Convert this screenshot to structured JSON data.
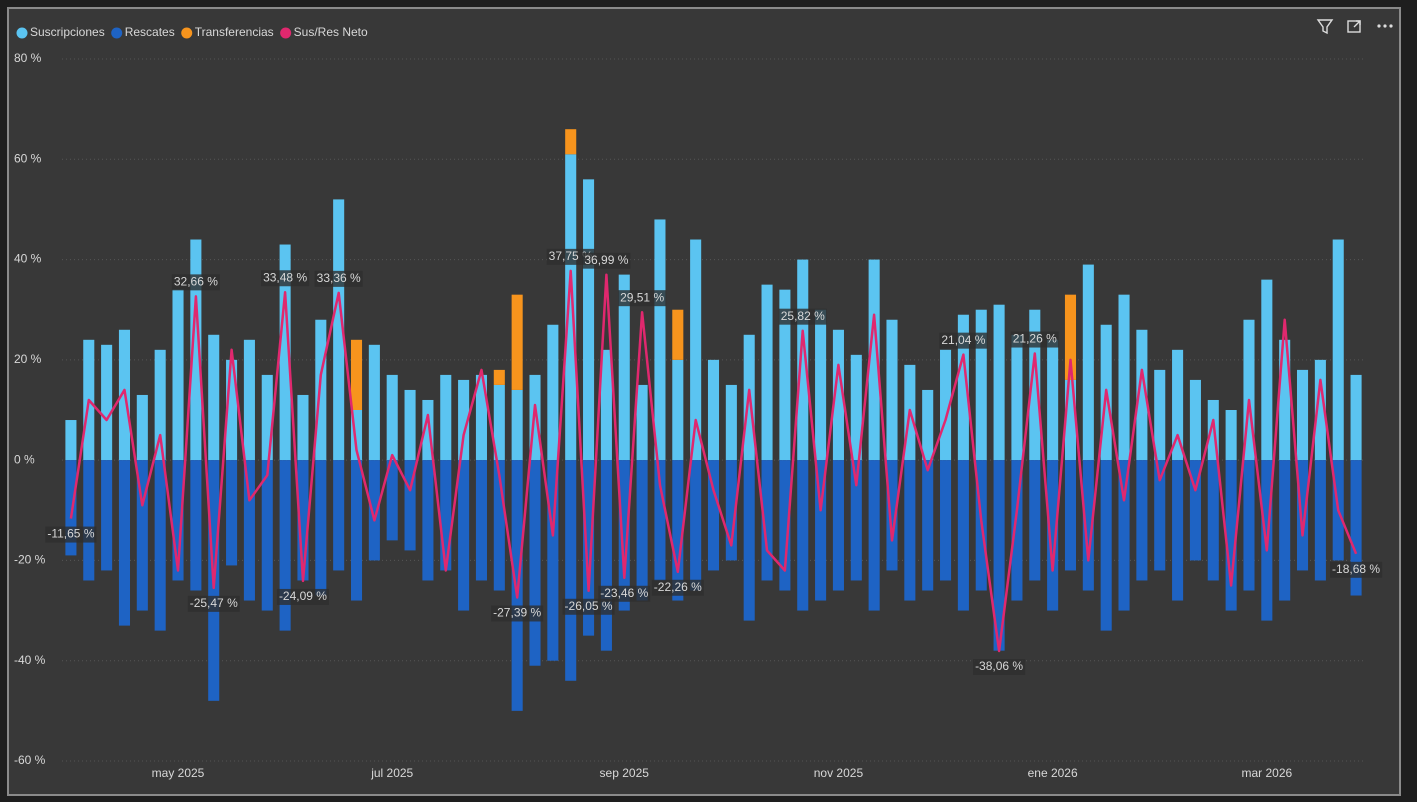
{
  "chart_data": {
    "type": "combo",
    "categories": [
      null,
      null,
      null,
      null,
      null,
      null,
      "may 2025",
      null,
      null,
      null,
      null,
      null,
      null,
      null,
      null,
      null,
      null,
      null,
      "jul 2025",
      null,
      null,
      null,
      null,
      null,
      null,
      null,
      null,
      null,
      null,
      null,
      null,
      "sep 2025",
      null,
      null,
      null,
      null,
      null,
      null,
      null,
      null,
      null,
      null,
      null,
      "nov 2025",
      null,
      null,
      null,
      null,
      null,
      null,
      null,
      null,
      null,
      null,
      null,
      "ene 2026",
      null,
      null,
      null,
      null,
      null,
      null,
      null,
      null,
      null,
      null,
      null,
      "mar 2026",
      null,
      null,
      null,
      null,
      null
    ],
    "series": [
      {
        "name": "Suscripciones",
        "type": "bar",
        "color": "#5bc4f1",
        "values": [
          8,
          24,
          23,
          26,
          13,
          22,
          34,
          44,
          25,
          20,
          24,
          17,
          43,
          13,
          28,
          52,
          10,
          23,
          17,
          14,
          12,
          17,
          16,
          17,
          15,
          14,
          17,
          27,
          61,
          56,
          22,
          37,
          15,
          48,
          20,
          44,
          20,
          15,
          25,
          35,
          34,
          40,
          30,
          26,
          21,
          40,
          28,
          19,
          14,
          22,
          29,
          30,
          31,
          25,
          30,
          24,
          16,
          39,
          27,
          33,
          26,
          18,
          22,
          16,
          12,
          10,
          28,
          36,
          24,
          18,
          20,
          44,
          17
        ]
      },
      {
        "name": "Rescates",
        "type": "bar",
        "color": "#1e63c4",
        "values": [
          -19,
          -24,
          -22,
          -33,
          -30,
          -34,
          -24,
          -26,
          -48,
          -21,
          -28,
          -30,
          -34,
          -24,
          -27,
          -22,
          -28,
          -20,
          -16,
          -18,
          -24,
          -22,
          -30,
          -24,
          -26,
          -50,
          -41,
          -40,
          -44,
          -35,
          -38,
          -30,
          -28,
          -24,
          -28,
          -26,
          -22,
          -20,
          -32,
          -24,
          -26,
          -30,
          -28,
          -26,
          -24,
          -30,
          -22,
          -28,
          -26,
          -24,
          -30,
          -26,
          -38,
          -28,
          -24,
          -30,
          -22,
          -26,
          -34,
          -30,
          -24,
          -22,
          -28,
          -20,
          -24,
          -30,
          -26,
          -32,
          -28,
          -22,
          -24,
          -20,
          -27
        ]
      },
      {
        "name": "Transferencias",
        "type": "bar",
        "color": "#f7941d",
        "values": [
          0,
          0,
          0,
          0,
          0,
          0,
          0,
          0,
          0,
          0,
          0,
          0,
          0,
          0,
          0,
          0,
          14,
          0,
          0,
          0,
          0,
          0,
          0,
          0,
          3,
          19,
          0,
          0,
          5,
          0,
          0,
          0,
          0,
          0,
          10,
          0,
          0,
          0,
          0,
          0,
          0,
          0,
          0,
          0,
          0,
          0,
          0,
          0,
          0,
          0,
          0,
          0,
          0,
          0,
          0,
          0,
          17,
          0,
          0,
          0,
          0,
          0,
          0,
          0,
          0,
          0,
          0,
          0,
          0,
          0,
          0,
          0,
          0
        ]
      },
      {
        "name": "Sus/Res Neto",
        "type": "line",
        "color": "#e0286e",
        "values": [
          -11.65,
          12,
          8,
          14,
          -9,
          5,
          -22,
          32.66,
          -25.47,
          22,
          -8,
          -3,
          33.48,
          -24.09,
          17,
          33.36,
          2,
          -12,
          1,
          -6,
          9,
          -22,
          5,
          18,
          -3,
          -27.39,
          11,
          -15,
          37.75,
          -26.05,
          36.99,
          -23.46,
          29.51,
          -5,
          -22.26,
          8,
          -6,
          -17,
          14,
          -18,
          -22,
          25.82,
          -10,
          19,
          -5,
          29,
          -16,
          10,
          -2,
          8,
          21.04,
          -12,
          -38.06,
          -10,
          21.26,
          -22,
          20,
          -20,
          14,
          -8,
          18,
          -4,
          5,
          -6,
          8,
          -25,
          12,
          -18,
          28,
          -15,
          16,
          -10,
          -18.68
        ],
        "value_labels": [
          "-11,65 %",
          null,
          null,
          null,
          null,
          null,
          null,
          "32,66 %",
          "-25,47 %",
          null,
          null,
          null,
          "33,48 %",
          "-24,09 %",
          null,
          "33,36 %",
          null,
          null,
          null,
          null,
          null,
          null,
          null,
          null,
          null,
          "-27,39 %",
          null,
          null,
          "37,75 %",
          "-26,05 %",
          "36,99 %",
          "-23,46 %",
          "29,51 %",
          null,
          "-22,26 %",
          null,
          null,
          null,
          null,
          null,
          null,
          "25,82 %",
          null,
          null,
          null,
          null,
          null,
          null,
          null,
          null,
          "21,04 %",
          null,
          "-38,06 %",
          null,
          "21,26 %",
          null,
          null,
          null,
          null,
          null,
          null,
          null,
          null,
          null,
          null,
          null,
          null,
          null,
          null,
          null,
          null,
          null,
          "-18,68 %"
        ]
      }
    ],
    "ylim": [
      -60,
      80
    ],
    "yticks": [
      {
        "value": -60,
        "label": "-60 %"
      },
      {
        "value": -40,
        "label": "-40 %"
      },
      {
        "value": -20,
        "label": "-20 %"
      },
      {
        "value": 0,
        "label": "0 %"
      },
      {
        "value": 20,
        "label": "20 %"
      },
      {
        "value": 40,
        "label": "40 %"
      },
      {
        "value": 60,
        "label": "60 %"
      },
      {
        "value": 80,
        "label": "80 %"
      }
    ],
    "grid": true
  }
}
